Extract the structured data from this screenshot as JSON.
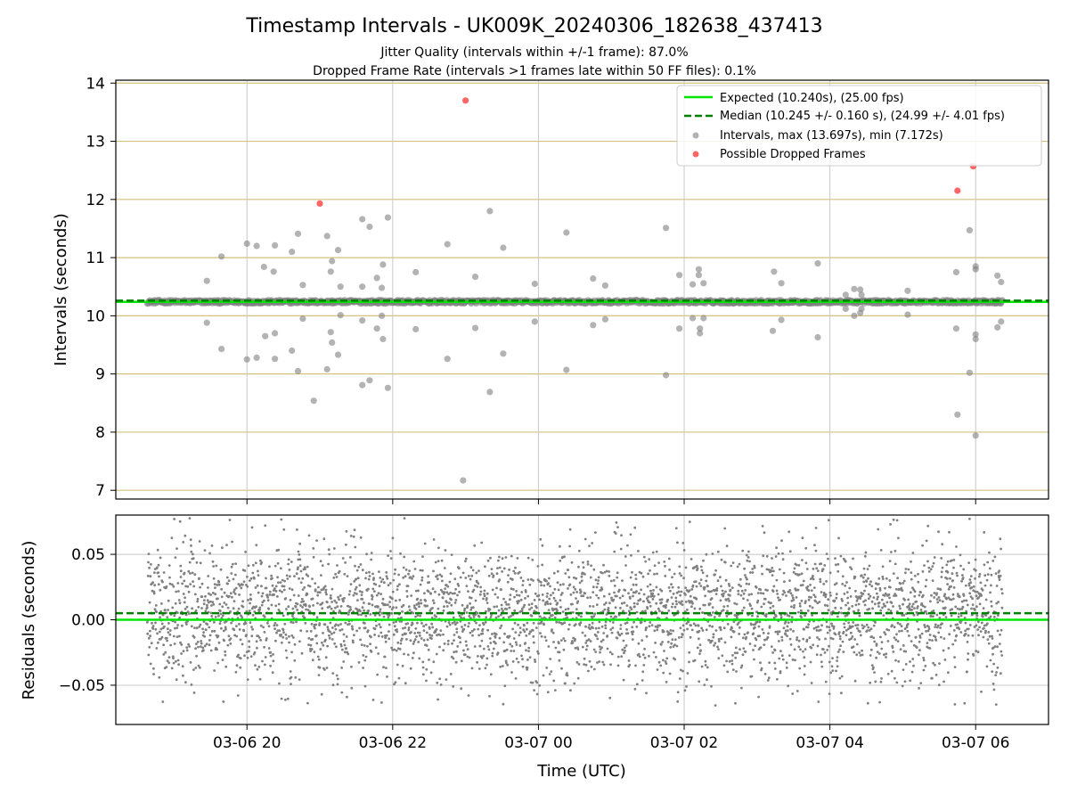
{
  "title": "Timestamp Intervals - UK009K_20240306_182638_437413",
  "subtitle_1": "Jitter Quality (intervals within +/-1 frame): 87.0%",
  "subtitle_2": "Dropped Frame Rate (intervals >1 frames late within 50 FF files): 0.1%",
  "colors": {
    "expected": "#00e600",
    "median": "#008000",
    "intervals": "#808080",
    "dropped": "#ff0000",
    "hgrid_top": "#d4c27e",
    "grid": "#c8c8c8"
  },
  "chart_data": [
    {
      "type": "scatter",
      "panel": "intervals",
      "xlabel": "",
      "ylabel": "Intervals (seconds)",
      "x_axis": "time (UTC)",
      "xlim": [
        "2024-03-06 18:12",
        "2024-03-07 07:00"
      ],
      "ylim": [
        6.85,
        14.05
      ],
      "y_ticks": [
        7,
        8,
        9,
        10,
        11,
        12,
        13,
        14
      ],
      "grid": "on",
      "legend": "top-right",
      "legend_entries": [
        "Expected (10.240s), (25.00 fps)",
        "Median (10.245 +/- 0.160 s), (24.99 +/- 4.01 fps)",
        "Intervals, max (13.697s), min (7.172s)",
        "Possible Dropped Frames"
      ],
      "expected_line": 10.24,
      "median_line": 10.245,
      "series_intervals_band": {
        "x_start": "2024-03-06 18:38",
        "x_end": "2024-03-07 06:22",
        "y_center": 10.24,
        "y_spread": 0.05
      },
      "series_intervals_outliers": [
        {
          "x": "2024-03-06 19:27",
          "y": 10.6
        },
        {
          "x": "2024-03-06 19:27",
          "y": 9.88
        },
        {
          "x": "2024-03-06 19:39",
          "y": 11.02
        },
        {
          "x": "2024-03-06 19:39",
          "y": 9.43
        },
        {
          "x": "2024-03-06 20:00",
          "y": 11.24
        },
        {
          "x": "2024-03-06 20:00",
          "y": 9.25
        },
        {
          "x": "2024-03-06 20:08",
          "y": 11.2
        },
        {
          "x": "2024-03-06 20:08",
          "y": 9.28
        },
        {
          "x": "2024-03-06 20:14",
          "y": 10.84
        },
        {
          "x": "2024-03-06 20:15",
          "y": 9.65
        },
        {
          "x": "2024-03-06 20:23",
          "y": 11.21
        },
        {
          "x": "2024-03-06 20:22",
          "y": 10.76
        },
        {
          "x": "2024-03-06 20:23",
          "y": 9.7
        },
        {
          "x": "2024-03-06 20:23",
          "y": 9.26
        },
        {
          "x": "2024-03-06 20:37",
          "y": 11.1
        },
        {
          "x": "2024-03-06 20:37",
          "y": 9.4
        },
        {
          "x": "2024-03-06 20:42",
          "y": 11.41
        },
        {
          "x": "2024-03-06 20:42",
          "y": 9.05
        },
        {
          "x": "2024-03-06 20:46",
          "y": 10.53
        },
        {
          "x": "2024-03-06 20:46",
          "y": 9.95
        },
        {
          "x": "2024-03-06 20:55",
          "y": 8.54
        },
        {
          "x": "2024-03-06 21:06",
          "y": 11.37
        },
        {
          "x": "2024-03-06 21:06",
          "y": 9.08
        },
        {
          "x": "2024-03-06 21:09",
          "y": 10.76
        },
        {
          "x": "2024-03-06 21:09",
          "y": 9.72
        },
        {
          "x": "2024-03-06 21:10",
          "y": 9.54
        },
        {
          "x": "2024-03-06 21:10",
          "y": 10.94
        },
        {
          "x": "2024-03-06 21:15",
          "y": 11.13
        },
        {
          "x": "2024-03-06 21:15",
          "y": 9.33
        },
        {
          "x": "2024-03-06 21:17",
          "y": 10.5
        },
        {
          "x": "2024-03-06 21:17",
          "y": 10.01
        },
        {
          "x": "2024-03-06 21:35",
          "y": 11.66
        },
        {
          "x": "2024-03-06 21:35",
          "y": 8.81
        },
        {
          "x": "2024-03-06 21:35",
          "y": 10.5
        },
        {
          "x": "2024-03-06 21:35",
          "y": 9.92
        },
        {
          "x": "2024-03-06 21:41",
          "y": 11.53
        },
        {
          "x": "2024-03-06 21:41",
          "y": 8.89
        },
        {
          "x": "2024-03-06 21:47",
          "y": 10.65
        },
        {
          "x": "2024-03-06 21:47",
          "y": 9.78
        },
        {
          "x": "2024-03-06 21:52",
          "y": 10.88
        },
        {
          "x": "2024-03-06 21:52",
          "y": 9.6
        },
        {
          "x": "2024-03-06 21:51",
          "y": 10.48
        },
        {
          "x": "2024-03-06 21:51",
          "y": 10.0
        },
        {
          "x": "2024-03-06 21:56",
          "y": 11.69
        },
        {
          "x": "2024-03-06 21:56",
          "y": 8.76
        },
        {
          "x": "2024-03-06 22:19",
          "y": 10.75
        },
        {
          "x": "2024-03-06 22:19",
          "y": 9.77
        },
        {
          "x": "2024-03-06 22:45",
          "y": 11.23
        },
        {
          "x": "2024-03-06 22:45",
          "y": 9.26
        },
        {
          "x": "2024-03-06 22:58",
          "y": 7.17
        },
        {
          "x": "2024-03-06 23:08",
          "y": 10.67
        },
        {
          "x": "2024-03-06 23:08",
          "y": 9.79
        },
        {
          "x": "2024-03-06 23:20",
          "y": 11.8
        },
        {
          "x": "2024-03-06 23:20",
          "y": 8.69
        },
        {
          "x": "2024-03-06 23:31",
          "y": 11.17
        },
        {
          "x": "2024-03-06 23:31",
          "y": 9.35
        },
        {
          "x": "2024-03-06 23:57",
          "y": 10.55
        },
        {
          "x": "2024-03-06 23:57",
          "y": 9.9
        },
        {
          "x": "2024-03-07 00:23",
          "y": 11.43
        },
        {
          "x": "2024-03-07 00:23",
          "y": 9.07
        },
        {
          "x": "2024-03-07 00:45",
          "y": 10.64
        },
        {
          "x": "2024-03-07 00:45",
          "y": 9.84
        },
        {
          "x": "2024-03-07 00:55",
          "y": 10.52
        },
        {
          "x": "2024-03-07 00:55",
          "y": 9.94
        },
        {
          "x": "2024-03-07 01:45",
          "y": 11.51
        },
        {
          "x": "2024-03-07 01:45",
          "y": 8.98
        },
        {
          "x": "2024-03-07 01:56",
          "y": 10.7
        },
        {
          "x": "2024-03-07 01:56",
          "y": 9.78
        },
        {
          "x": "2024-03-07 02:07",
          "y": 10.54
        },
        {
          "x": "2024-03-07 02:07",
          "y": 9.96
        },
        {
          "x": "2024-03-07 02:12",
          "y": 10.8
        },
        {
          "x": "2024-03-07 02:12",
          "y": 10.7
        },
        {
          "x": "2024-03-07 02:13",
          "y": 9.78
        },
        {
          "x": "2024-03-07 02:13",
          "y": 9.7
        },
        {
          "x": "2024-03-07 02:16",
          "y": 10.56
        },
        {
          "x": "2024-03-07 02:16",
          "y": 9.96
        },
        {
          "x": "2024-03-07 03:14",
          "y": 10.76
        },
        {
          "x": "2024-03-07 03:13",
          "y": 9.74
        },
        {
          "x": "2024-03-07 03:20",
          "y": 10.56
        },
        {
          "x": "2024-03-07 03:20",
          "y": 9.93
        },
        {
          "x": "2024-03-07 03:50",
          "y": 10.9
        },
        {
          "x": "2024-03-07 03:50",
          "y": 9.63
        },
        {
          "x": "2024-03-07 04:13",
          "y": 10.36
        },
        {
          "x": "2024-03-07 04:13",
          "y": 10.12
        },
        {
          "x": "2024-03-07 04:20",
          "y": 10.46
        },
        {
          "x": "2024-03-07 04:20",
          "y": 10.0
        },
        {
          "x": "2024-03-07 04:25",
          "y": 10.45
        },
        {
          "x": "2024-03-07 04:25",
          "y": 10.05
        },
        {
          "x": "2024-03-07 04:26",
          "y": 10.36
        },
        {
          "x": "2024-03-07 04:26",
          "y": 10.12
        },
        {
          "x": "2024-03-07 05:04",
          "y": 10.43
        },
        {
          "x": "2024-03-07 05:04",
          "y": 10.02
        },
        {
          "x": "2024-03-07 05:44",
          "y": 10.75
        },
        {
          "x": "2024-03-07 05:44",
          "y": 9.78
        },
        {
          "x": "2024-03-07 05:45",
          "y": 8.3
        },
        {
          "x": "2024-03-07 05:55",
          "y": 11.47
        },
        {
          "x": "2024-03-07 05:55",
          "y": 9.02
        },
        {
          "x": "2024-03-07 06:00",
          "y": 10.85
        },
        {
          "x": "2024-03-07 06:00",
          "y": 10.8
        },
        {
          "x": "2024-03-07 06:00",
          "y": 9.68
        },
        {
          "x": "2024-03-07 06:00",
          "y": 9.6
        },
        {
          "x": "2024-03-07 06:00",
          "y": 7.94
        },
        {
          "x": "2024-03-07 06:18",
          "y": 10.69
        },
        {
          "x": "2024-03-07 06:18",
          "y": 9.8
        },
        {
          "x": "2024-03-07 06:21",
          "y": 10.58
        },
        {
          "x": "2024-03-07 06:21",
          "y": 9.9
        }
      ],
      "series_dropped": [
        {
          "x": "2024-03-06 21:00",
          "y": 11.93
        },
        {
          "x": "2024-03-06 23:00",
          "y": 13.7
        },
        {
          "x": "2024-03-07 05:45",
          "y": 12.15
        },
        {
          "x": "2024-03-07 05:58",
          "y": 12.57
        }
      ]
    },
    {
      "type": "scatter",
      "panel": "residuals",
      "xlabel": "Time (UTC)",
      "ylabel": "Residuals (seconds)",
      "xlim": [
        "2024-03-06 18:12",
        "2024-03-07 07:00"
      ],
      "ylim": [
        -0.08,
        0.08
      ],
      "y_ticks": [
        -0.05,
        0.0,
        0.05
      ],
      "y_tick_labels": [
        "−0.05",
        "0.00",
        "0.05"
      ],
      "x_ticks": [
        "2024-03-06 20:00",
        "2024-03-06 22:00",
        "2024-03-07 00:00",
        "2024-03-07 02:00",
        "2024-03-07 04:00",
        "2024-03-07 06:00"
      ],
      "x_tick_labels": [
        "03-06 20",
        "03-06 22",
        "03-07 00",
        "03-07 02",
        "03-07 04",
        "03-07 06"
      ],
      "grid": "on",
      "expected_line": 0.0,
      "median_line": 0.005,
      "residuals": {
        "x_start": "2024-03-06 18:38",
        "x_end": "2024-03-07 06:22",
        "count": 3600,
        "mean": 0.005,
        "std": 0.026,
        "range": [
          -0.066,
          0.078
        ]
      }
    }
  ]
}
